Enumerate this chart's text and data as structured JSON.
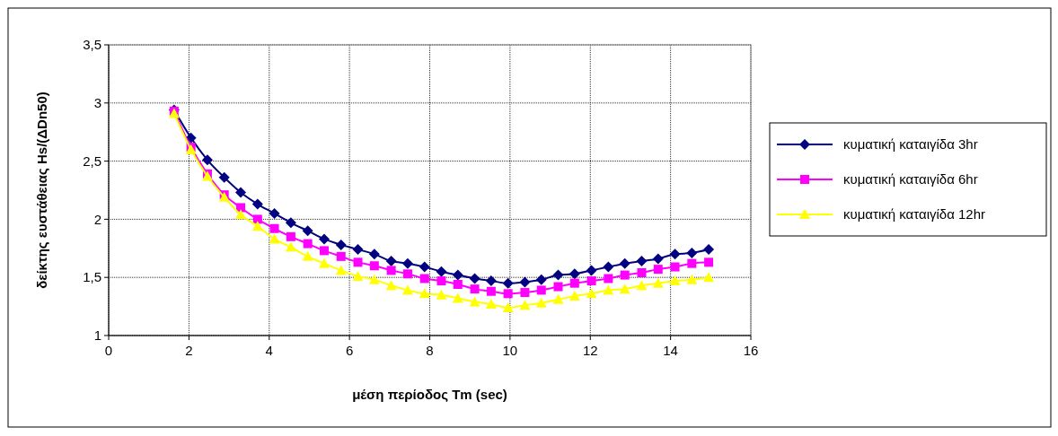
{
  "chart_data": {
    "type": "line",
    "xlabel": "μέση περίοδος Tm (sec)",
    "ylabel": "δείκτης ευστάθειας Hs/(ΔDn50)",
    "x": [
      1.63,
      2.05,
      2.46,
      2.88,
      3.29,
      3.71,
      4.13,
      4.54,
      4.96,
      5.37,
      5.79,
      6.21,
      6.62,
      7.04,
      7.45,
      7.87,
      8.29,
      8.7,
      9.12,
      9.53,
      9.95,
      10.37,
      10.78,
      11.2,
      11.61,
      12.03,
      12.45,
      12.86,
      13.28,
      13.69,
      14.11,
      14.53,
      14.95
    ],
    "series": [
      {
        "name": "κυματική καταιγίδα 3hr",
        "color": "#000080",
        "marker": "diamond",
        "values": [
          2.94,
          2.7,
          2.51,
          2.36,
          2.23,
          2.13,
          2.05,
          1.97,
          1.9,
          1.83,
          1.78,
          1.74,
          1.7,
          1.64,
          1.62,
          1.59,
          1.55,
          1.52,
          1.49,
          1.47,
          1.45,
          1.46,
          1.48,
          1.52,
          1.53,
          1.56,
          1.59,
          1.62,
          1.64,
          1.66,
          1.7,
          1.71,
          1.74
        ]
      },
      {
        "name": "κυματική καταιγίδα 6hr",
        "color": "#ff00ff",
        "marker": "square",
        "values": [
          2.93,
          2.62,
          2.39,
          2.21,
          2.1,
          2.0,
          1.92,
          1.85,
          1.79,
          1.73,
          1.68,
          1.63,
          1.6,
          1.56,
          1.53,
          1.49,
          1.47,
          1.44,
          1.4,
          1.38,
          1.36,
          1.37,
          1.39,
          1.42,
          1.45,
          1.47,
          1.49,
          1.52,
          1.54,
          1.57,
          1.59,
          1.62,
          1.63
        ]
      },
      {
        "name": "κυματική καταιγίδα 12hr",
        "color": "#ffff00",
        "marker": "triangle",
        "values": [
          2.91,
          2.6,
          2.37,
          2.19,
          2.04,
          1.94,
          1.83,
          1.76,
          1.68,
          1.62,
          1.56,
          1.51,
          1.48,
          1.43,
          1.39,
          1.36,
          1.35,
          1.32,
          1.29,
          1.27,
          1.24,
          1.26,
          1.28,
          1.31,
          1.34,
          1.36,
          1.39,
          1.4,
          1.43,
          1.45,
          1.47,
          1.48,
          1.5
        ]
      }
    ],
    "xlim": [
      0,
      16
    ],
    "xticks": [
      0,
      2,
      4,
      6,
      8,
      10,
      12,
      14,
      16
    ],
    "ylim": [
      1,
      3.5
    ],
    "yticks": [
      {
        "value": 1,
        "label": "1"
      },
      {
        "value": 1.5,
        "label": "1,5"
      },
      {
        "value": 2,
        "label": "2"
      },
      {
        "value": 2.5,
        "label": "2,5"
      },
      {
        "value": 3,
        "label": "3"
      },
      {
        "value": 3.5,
        "label": "3,5"
      }
    ],
    "grid": true,
    "legend": "right"
  }
}
